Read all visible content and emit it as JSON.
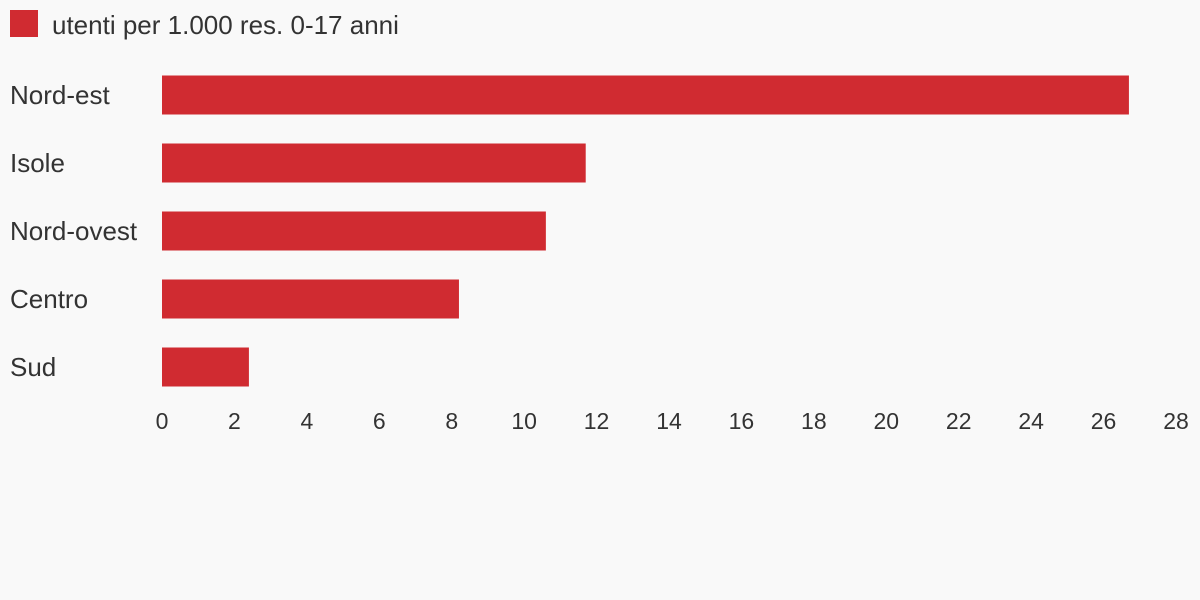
{
  "chart_data": {
    "type": "bar",
    "orientation": "horizontal",
    "categories": [
      "Nord-est",
      "Isole",
      "Nord-ovest",
      "Centro",
      "Sud"
    ],
    "series": [
      {
        "name": "utenti per 1.000 res. 0-17 anni",
        "color": "#d02b31",
        "values": [
          26.7,
          11.7,
          10.6,
          8.2,
          2.4
        ]
      }
    ],
    "xlim": [
      0,
      28
    ],
    "xticks": [
      0,
      2,
      4,
      6,
      8,
      10,
      12,
      14,
      16,
      18,
      20,
      22,
      24,
      26,
      28
    ],
    "grid": false
  }
}
